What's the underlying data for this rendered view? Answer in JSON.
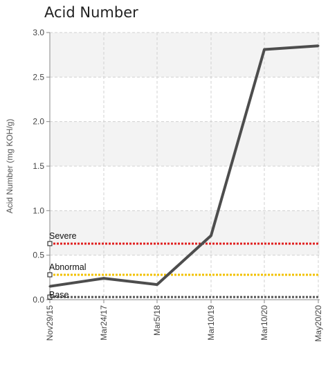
{
  "chart_data": {
    "type": "line",
    "title": "Acid Number",
    "ylabel": "Acid Number (mg KOH/g)",
    "xlabel": "",
    "ylim": [
      0,
      3.0
    ],
    "yticks": [
      "0.0",
      "0.5",
      "1.0",
      "1.5",
      "2.0",
      "2.5",
      "3.0"
    ],
    "categories": [
      "Nov29/15",
      "Mar24/17",
      "Mar5/18",
      "Mar10/19",
      "Mar10/20",
      "May20/20"
    ],
    "grid": true,
    "series": [
      {
        "values": [
          0.15,
          0.24,
          0.17,
          0.72,
          2.81,
          2.85
        ],
        "color": "#4d4d4d"
      }
    ],
    "reference_lines": [
      {
        "label": "Severe",
        "value": 0.63,
        "color": "#e02020"
      },
      {
        "label": "Abnormal",
        "value": 0.28,
        "color": "#f2c200"
      },
      {
        "label": "Base",
        "value": 0.03,
        "color": "#555555"
      }
    ]
  }
}
